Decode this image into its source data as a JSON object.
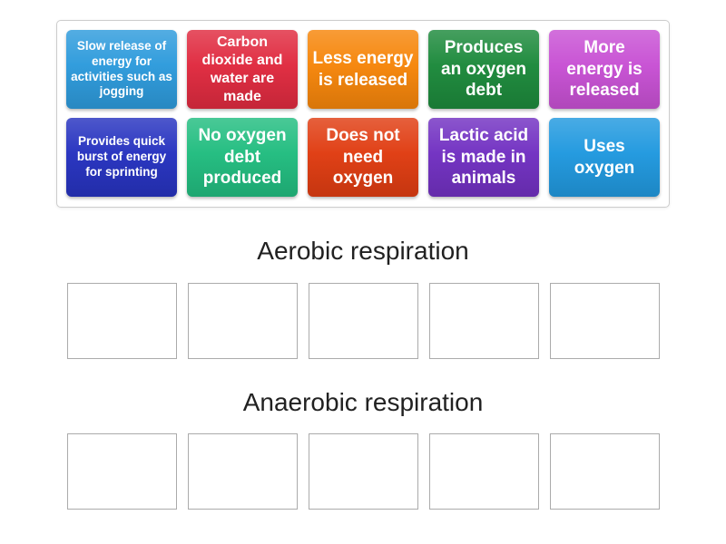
{
  "board": {
    "tray": {
      "tiles": [
        {
          "label": "Slow release of energy for activities such as jogging",
          "color": "#2E9BDC"
        },
        {
          "label": "Carbon dioxide and water are made",
          "color": "#E02B40"
        },
        {
          "label": "Less energy is released",
          "color": "#F6860B"
        },
        {
          "label": "Produces an oxygen debt",
          "color": "#1D8A3C"
        },
        {
          "label": "More energy is released",
          "color": "#C851D4"
        },
        {
          "label": "Provides quick burst of energy for sprinting",
          "color": "#2733C0"
        },
        {
          "label": "No oxygen debt produced",
          "color": "#22BD80"
        },
        {
          "label": "Does not need oxygen",
          "color": "#E03D12"
        },
        {
          "label": "Lactic acid is made in animals",
          "color": "#7231C2"
        },
        {
          "label": "Uses oxygen",
          "color": "#2199DF"
        }
      ]
    },
    "groups": [
      {
        "title": "Aerobic respiration"
      },
      {
        "title": "Anaerobic respiration"
      }
    ],
    "slots_per_group": 5,
    "colors": {
      "page_background": "#FFFFFF",
      "tray_border": "#CCCCCC",
      "slot_border": "#ABABAB",
      "title_text": "#212121",
      "tile_text": "#FFFFFF"
    }
  }
}
